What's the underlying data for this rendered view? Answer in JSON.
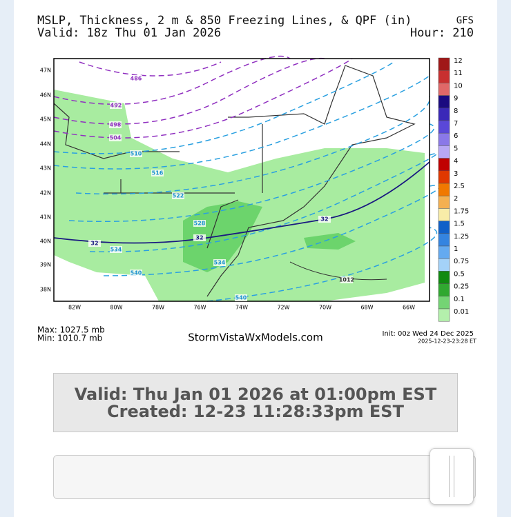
{
  "header": {
    "title": "MSLP, Thickness, 2 m & 850 Freezing Lines, & QPF (in)",
    "model": "GFS",
    "valid": "Valid: 18z Thu 01 Jan 2026",
    "hour": "Hour: 210"
  },
  "map": {
    "lat_labels": [
      "47N",
      "46N",
      "45N",
      "44N",
      "43N",
      "42N",
      "41N",
      "40N",
      "39N",
      "38N"
    ],
    "lon_labels": [
      "82W",
      "80W",
      "78W",
      "76W",
      "74W",
      "72W",
      "70W",
      "68W",
      "66W"
    ],
    "contour_labels": [
      "486",
      "492",
      "498",
      "504",
      "510",
      "516",
      "522",
      "528",
      "534",
      "534",
      "540",
      "540",
      "32",
      "32",
      "32",
      "1012"
    ]
  },
  "legend": {
    "labels": [
      "12",
      "11",
      "10",
      "9",
      "8",
      "7",
      "6",
      "5",
      "4",
      "3",
      "2.5",
      "2",
      "1.75",
      "1.5",
      "1.25",
      "1",
      "0.75",
      "0.5",
      "0.25",
      "0.1",
      "0.01"
    ],
    "colors": [
      "#a01818",
      "#c83030",
      "#e06868",
      "#1a0a80",
      "#3a28b8",
      "#5a48d8",
      "#8a78e8",
      "#b8a8f4",
      "#c00000",
      "#e03800",
      "#f07800",
      "#f4b050",
      "#f8eca8",
      "#1060c8",
      "#3484e0",
      "#64aaf0",
      "#a4d2f8",
      "#108a10",
      "#30a830",
      "#74d474",
      "#b4f0ac"
    ]
  },
  "footer": {
    "max": "Max: 1027.5 mb",
    "min": "Min: 1010.7 mb",
    "site": "StormVistaWxModels.com",
    "init": "Init: 00z Wed 24 Dec 2025",
    "stamp": "2025-12-23-23:28 ET"
  },
  "info_box": {
    "line1": "Valid: Thu Jan 01 2026 at 01:00pm EST",
    "line2": "Created: 12-23 11:28:33pm EST"
  }
}
